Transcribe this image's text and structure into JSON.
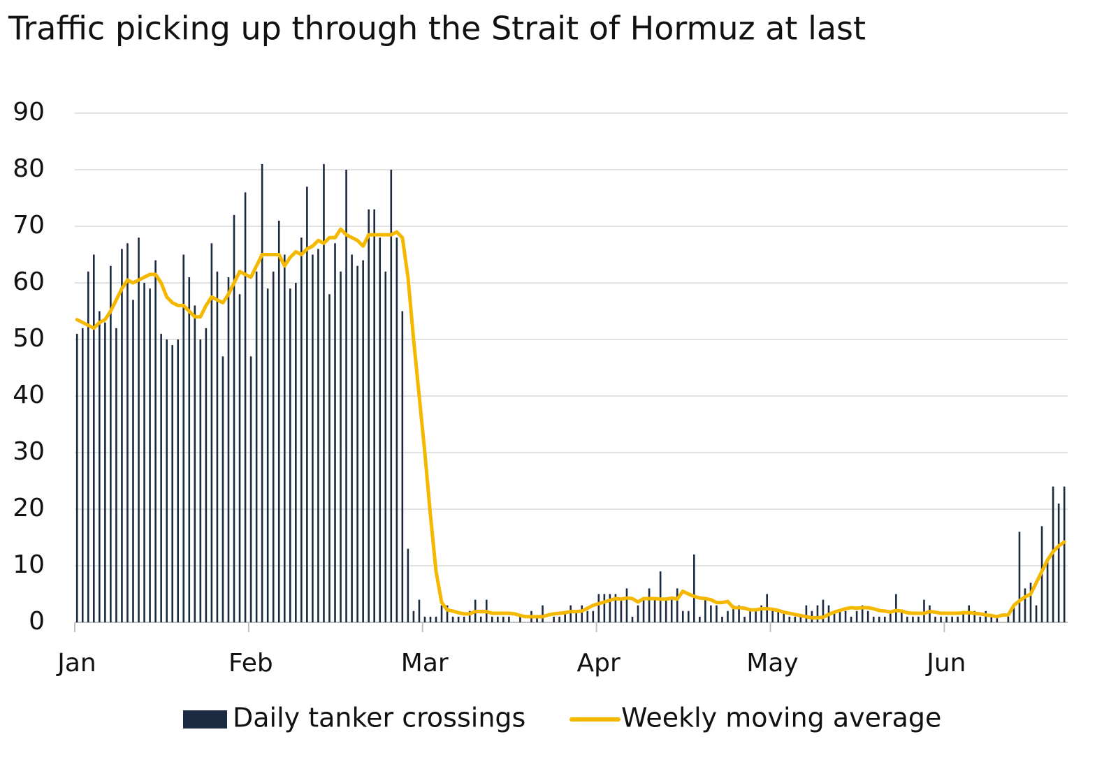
{
  "chart_data": {
    "type": "bar",
    "title": "Traffic picking up through the Strait of Hormuz at last",
    "categories": [
      "Jan",
      null,
      null,
      null,
      null,
      null,
      null,
      null,
      null,
      null,
      null,
      null,
      null,
      null,
      null,
      null,
      null,
      null,
      null,
      null,
      null,
      null,
      null,
      null,
      null,
      null,
      null,
      null,
      null,
      null,
      null,
      "Feb",
      null,
      null,
      null,
      null,
      null,
      null,
      null,
      null,
      null,
      null,
      null,
      null,
      null,
      null,
      null,
      null,
      null,
      null,
      null,
      null,
      null,
      null,
      null,
      null,
      null,
      null,
      null,
      null,
      null,
      null,
      "Mar",
      null,
      null,
      null,
      null,
      null,
      null,
      null,
      null,
      null,
      null,
      null,
      null,
      null,
      null,
      null,
      null,
      null,
      null,
      null,
      null,
      null,
      null,
      null,
      null,
      null,
      null,
      null,
      null,
      null,
      null,
      "Apr",
      null,
      null,
      null,
      null,
      null,
      null,
      null,
      null,
      null,
      null,
      null,
      null,
      null,
      null,
      null,
      null,
      null,
      null,
      null,
      null,
      null,
      null,
      null,
      null,
      null,
      null,
      null,
      null,
      null,
      null,
      "May",
      null,
      null,
      null,
      null,
      null,
      null,
      null,
      null,
      null,
      null,
      null,
      null,
      null,
      null,
      null,
      null,
      null,
      null,
      null,
      null,
      null,
      null,
      null,
      null,
      null,
      null,
      null,
      null,
      null,
      null,
      "Jun",
      null,
      null,
      null,
      null,
      null,
      null,
      null,
      null,
      null,
      null,
      null,
      null,
      null,
      null,
      null,
      null,
      null,
      null,
      null,
      null,
      null
    ],
    "series": [
      {
        "name": "Daily tanker crossings",
        "type": "bar",
        "color": "#1b2a41",
        "values": [
          51,
          52,
          62,
          65,
          55,
          53,
          63,
          52,
          66,
          67,
          57,
          68,
          60,
          59,
          64,
          51,
          50,
          49,
          50,
          65,
          61,
          56,
          50,
          52,
          67,
          62,
          47,
          61,
          72,
          58,
          76,
          47,
          62,
          81,
          59,
          62,
          71,
          65,
          59,
          60,
          68,
          77,
          65,
          66,
          81,
          58,
          67,
          62,
          80,
          65,
          63,
          64,
          73,
          73,
          68,
          62,
          80,
          68,
          55,
          13,
          2,
          4,
          1,
          1,
          1,
          3,
          3,
          1,
          1,
          1,
          2,
          4,
          1,
          4,
          1,
          1,
          1,
          1,
          0,
          1,
          0,
          2,
          1,
          3,
          0,
          1,
          1,
          2,
          3,
          2,
          3,
          2,
          2,
          5,
          5,
          5,
          5,
          4,
          6,
          1,
          3,
          4,
          6,
          4,
          9,
          4,
          4,
          6,
          2,
          2,
          12,
          1,
          4,
          3,
          3,
          1,
          2,
          3,
          3,
          1,
          2,
          2,
          3,
          5,
          2,
          2,
          2,
          1,
          1,
          1,
          3,
          2,
          3,
          4,
          3,
          2,
          2,
          2,
          1,
          2,
          3,
          2,
          1,
          1,
          1,
          2,
          5,
          2,
          1,
          1,
          1,
          4,
          3,
          1,
          1,
          1,
          1,
          1,
          2,
          3,
          2,
          1,
          2,
          1,
          1,
          0,
          1,
          3,
          16,
          6,
          7,
          3,
          17,
          11,
          24,
          21,
          24
        ]
      },
      {
        "name": "Weekly moving average",
        "type": "line",
        "color": "#f5b800",
        "values": [
          53.5,
          53,
          52.5,
          52,
          53,
          53.5,
          55,
          57,
          59,
          60.5,
          60,
          60.5,
          61,
          61.5,
          61.5,
          60,
          57.5,
          56.5,
          56,
          56,
          55,
          54,
          54,
          56,
          57.5,
          57,
          56.5,
          58,
          60,
          62,
          61.5,
          61,
          63,
          65,
          65,
          65,
          65,
          63,
          64.5,
          65.5,
          65,
          66,
          66.5,
          67.5,
          67,
          68,
          68,
          69.5,
          68.5,
          68,
          67.5,
          66.5,
          68.5,
          68.5,
          68.5,
          68.5,
          68.5,
          69,
          68,
          61,
          50,
          40,
          30,
          19,
          9,
          3.5,
          2.2,
          2,
          1.7,
          1.5,
          1.5,
          1.9,
          1.9,
          1.9,
          1.6,
          1.6,
          1.6,
          1.6,
          1.5,
          1.2,
          1,
          1,
          1,
          1,
          1.3,
          1.5,
          1.6,
          1.7,
          1.9,
          1.9,
          2,
          2.5,
          3,
          3.3,
          3.6,
          3.9,
          4.2,
          4.1,
          4.3,
          4.2,
          3.6,
          4.2,
          4.2,
          4.2,
          4.1,
          4.1,
          4.3,
          4.1,
          5.5,
          5,
          4.6,
          4.3,
          4.2,
          4,
          3.5,
          3.5,
          3.7,
          2.6,
          2.6,
          2.5,
          2.2,
          2.2,
          2.4,
          2.4,
          2.3,
          2.1,
          1.8,
          1.6,
          1.4,
          1.2,
          1,
          0.8,
          0.8,
          0.9,
          1.4,
          1.8,
          2.1,
          2.4,
          2.6,
          2.5,
          2.6,
          2.6,
          2.4,
          2.1,
          2,
          1.8,
          2.1,
          2,
          1.7,
          1.6,
          1.6,
          1.6,
          1.9,
          1.8,
          1.6,
          1.6,
          1.6,
          1.6,
          1.7,
          1.7,
          1.6,
          1.5,
          1.3,
          1.2,
          1,
          1.3,
          1.3,
          3,
          3.8,
          4.5,
          5,
          7,
          9,
          11,
          12.5,
          13.5,
          14.2
        ]
      }
    ],
    "ylim": [
      0,
      90
    ],
    "yticks": [
      0,
      10,
      20,
      30,
      40,
      50,
      60,
      70,
      80,
      90
    ],
    "grid": true,
    "legend": "bottom"
  }
}
